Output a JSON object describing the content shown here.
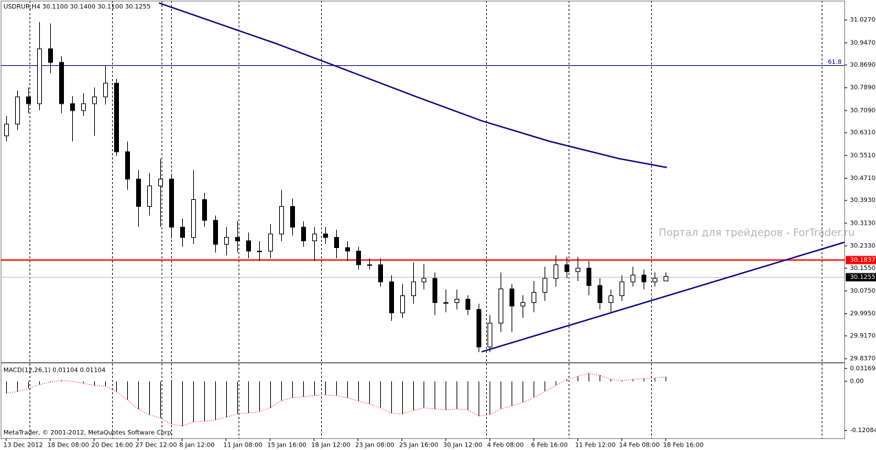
{
  "chart_data": [
    {
      "type": "candlestick",
      "title": "USDRUR,H4  30.1100 30.1400 30.1100 30.1255",
      "watermark": "Портал для трейдеров - ForTrader.ru",
      "categories": [
        "13 Dec 2012",
        null,
        null,
        null,
        "18 Dec 08:00",
        null,
        null,
        null,
        "20 Dec 16:00",
        null,
        null,
        null,
        "27 Dec 12:00",
        null,
        null,
        null,
        "8 Jan 12:00",
        null,
        null,
        null,
        "11 Jan 08:00",
        null,
        null,
        null,
        "15 Jan 16:00",
        null,
        null,
        null,
        "18 Jan 12:00",
        null,
        null,
        null,
        "23 Jan 08:00",
        null,
        null,
        null,
        "25 Jan 16:00",
        null,
        null,
        null,
        "30 Jan 12:00",
        null,
        null,
        null,
        "4 Feb 08:00",
        null,
        null,
        null,
        "6 Feb 16:00",
        null,
        null,
        null,
        "11 Feb 12:00",
        null,
        null,
        null,
        "14 Feb 08:00",
        null,
        null,
        null,
        "18 Feb 16:00"
      ],
      "open": [
        30.62,
        30.661,
        30.757,
        30.733,
        30.926,
        30.878,
        30.733,
        30.709,
        30.733,
        30.757,
        30.805,
        30.564,
        30.468,
        30.372,
        30.444,
        30.468,
        30.299,
        30.263,
        30.396,
        30.323,
        30.239,
        30.263,
        30.251,
        30.215,
        30.215,
        30.275,
        30.372,
        30.299,
        30.251,
        30.275,
        30.263,
        30.227,
        30.215,
        30.167,
        30.167,
        30.107,
        29.998,
        30.058,
        30.107,
        30.119,
        30.034,
        30.034,
        30.046,
        30.01,
        29.878,
        29.962,
        30.082,
        30.022,
        30.034,
        30.07,
        30.119,
        30.167,
        30.143,
        30.155,
        30.094,
        30.034,
        30.058,
        30.107,
        30.131,
        30.107,
        30.11
      ],
      "high": [
        30.69,
        30.78,
        30.79,
        31.02,
        31.015,
        30.9,
        30.76,
        30.77,
        30.79,
        30.866,
        30.82,
        30.6,
        30.5,
        30.49,
        30.54,
        30.48,
        30.33,
        30.5,
        30.42,
        30.34,
        30.3,
        30.32,
        30.28,
        30.25,
        30.31,
        30.43,
        30.4,
        30.32,
        30.3,
        30.3,
        30.29,
        30.25,
        30.23,
        30.19,
        30.19,
        30.13,
        30.1,
        30.175,
        30.17,
        30.14,
        30.08,
        30.08,
        30.06,
        30.03,
        29.99,
        30.14,
        30.1,
        30.06,
        30.11,
        30.16,
        30.2,
        30.195,
        30.195,
        30.18,
        30.12,
        30.08,
        30.13,
        30.16,
        30.15,
        30.14,
        30.14
      ],
      "low": [
        30.6,
        30.64,
        30.7,
        30.71,
        30.84,
        30.7,
        30.6,
        30.69,
        30.62,
        30.73,
        30.55,
        30.43,
        30.3,
        30.34,
        30.3,
        30.26,
        30.23,
        30.24,
        30.3,
        30.21,
        30.2,
        30.21,
        30.19,
        30.18,
        30.19,
        30.25,
        30.27,
        30.23,
        30.18,
        30.24,
        30.19,
        30.18,
        30.15,
        30.15,
        30.09,
        29.97,
        29.98,
        30.03,
        30.08,
        29.99,
        30.0,
        30.01,
        29.99,
        29.86,
        29.86,
        29.93,
        29.93,
        29.98,
        30.0,
        30.04,
        30.09,
        30.12,
        30.11,
        30.06,
        30.01,
        30.0,
        30.04,
        30.09,
        30.08,
        30.09,
        30.11
      ],
      "close": [
        30.661,
        30.757,
        30.733,
        30.926,
        30.878,
        30.733,
        30.709,
        30.733,
        30.757,
        30.805,
        30.564,
        30.468,
        30.372,
        30.444,
        30.468,
        30.299,
        30.263,
        30.396,
        30.323,
        30.239,
        30.263,
        30.251,
        30.215,
        30.215,
        30.275,
        30.372,
        30.299,
        30.251,
        30.275,
        30.263,
        30.227,
        30.215,
        30.167,
        30.167,
        30.107,
        29.998,
        30.058,
        30.107,
        30.119,
        30.034,
        30.034,
        30.046,
        30.01,
        29.878,
        29.962,
        30.082,
        30.022,
        30.034,
        30.07,
        30.119,
        30.167,
        30.143,
        30.155,
        30.094,
        30.034,
        30.058,
        30.107,
        30.131,
        30.107,
        30.119,
        30.1255
      ],
      "up_color": "#ffffff",
      "down_color": "#000000",
      "edge_color": "#000000",
      "xlim": [
        -0.5,
        76.25
      ],
      "ylim": [
        29.825,
        31.095
      ],
      "yticks": [
        {
          "value": 31.027,
          "label": "31.0270"
        },
        {
          "value": 30.947,
          "label": "30.9470"
        },
        {
          "value": 30.869,
          "label": "30.8690"
        },
        {
          "value": 30.789,
          "label": "30.7890"
        },
        {
          "value": 30.709,
          "label": "30.7090"
        },
        {
          "value": 30.631,
          "label": "30.6310"
        },
        {
          "value": 30.551,
          "label": "30.5510"
        },
        {
          "value": 30.471,
          "label": "30.4710"
        },
        {
          "value": 30.393,
          "label": "30.3930"
        },
        {
          "value": 30.313,
          "label": "30.3130"
        },
        {
          "value": 30.233,
          "label": "30.2330"
        },
        {
          "value": 30.155,
          "label": "30.1550"
        },
        {
          "value": 30.075,
          "label": "30.0750"
        },
        {
          "value": 29.995,
          "label": "29.9950"
        },
        {
          "value": 29.917,
          "label": "29.9170"
        },
        {
          "value": 29.837,
          "label": "29.8370"
        }
      ],
      "lines": [
        {
          "color": "#000080",
          "x": [
            13.9,
            24.5,
            30.75,
            37,
            43.25,
            49.5,
            55.75,
            60.1
          ],
          "values": [
            31.087,
            30.945,
            30.854,
            30.762,
            30.673,
            30.6,
            30.54,
            30.509
          ]
        },
        {
          "color": "#000080",
          "x": [
            43.25,
            76.25
          ],
          "values": [
            29.861,
            30.246
          ]
        }
      ],
      "levels": [
        {
          "value": 30.869,
          "label": "61.8",
          "color": "#000080"
        },
        {
          "value": 30.1837,
          "color": "#ff0000",
          "tag_color": "#ff0000"
        },
        {
          "value": 30.1255,
          "color": "#c0c0c0",
          "tag_color": "#000000"
        }
      ]
    },
    {
      "type": "macd",
      "title": "MACD(12,26,1) 0.01104 0.01104",
      "values": [
        -0.03,
        -0.025,
        -0.018,
        -0.008,
        -0.002,
        0.002,
        0.0,
        -0.005,
        -0.01,
        -0.012,
        -0.025,
        -0.045,
        -0.068,
        -0.082,
        -0.09,
        -0.105,
        -0.11,
        -0.1,
        -0.098,
        -0.095,
        -0.088,
        -0.08,
        -0.078,
        -0.075,
        -0.065,
        -0.048,
        -0.04,
        -0.038,
        -0.035,
        -0.033,
        -0.035,
        -0.04,
        -0.048,
        -0.055,
        -0.065,
        -0.078,
        -0.08,
        -0.072,
        -0.065,
        -0.068,
        -0.07,
        -0.068,
        -0.07,
        -0.085,
        -0.082,
        -0.068,
        -0.06,
        -0.052,
        -0.04,
        -0.025,
        -0.01,
        0.005,
        0.012,
        0.02,
        0.015,
        0.005,
        0.002,
        0.005,
        0.007,
        0.008,
        0.01104
      ],
      "bar_color": "#000000",
      "signal_color": "#ff0000",
      "xlim": [
        -0.5,
        76.25
      ],
      "ylim": [
        -0.14,
        0.044
      ],
      "yticks": [
        0.03169,
        {
          "value": 0,
          "label": "0.00"
        },
        -0.12084
      ]
    }
  ],
  "footer": "MetaTrader, © 2001-2012, MetaQuotes Software Corp."
}
